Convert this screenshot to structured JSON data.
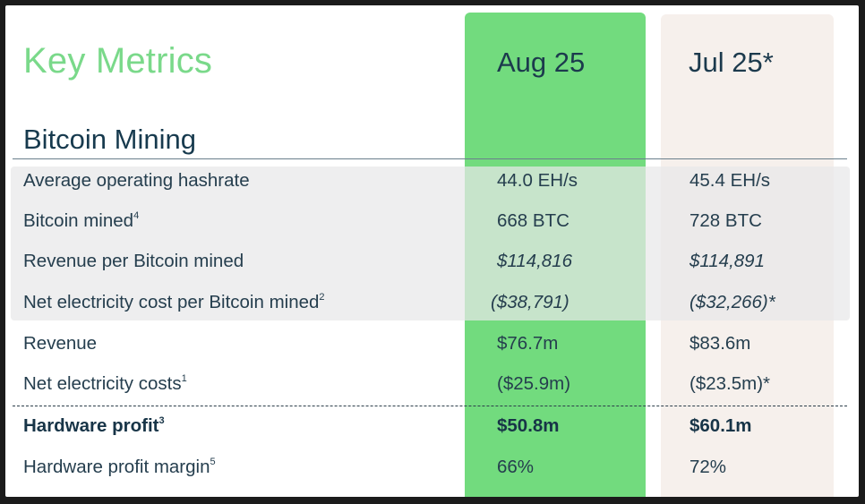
{
  "title": "Key Metrics",
  "columns": {
    "current": "Aug 25",
    "previous": "Jul 25*"
  },
  "section": "Bitcoin Mining",
  "rows": [
    {
      "label": "Average operating hashrate",
      "sup": "",
      "aug": "44.0 EH/s",
      "jul": "45.4 EH/s"
    },
    {
      "label": "Bitcoin mined",
      "sup": "4",
      "aug": "668 BTC",
      "jul": "728 BTC"
    },
    {
      "label": "Revenue per Bitcoin mined",
      "sup": "",
      "aug": "$114,816",
      "jul": "$114,891"
    },
    {
      "label": "Net electricity cost per Bitcoin mined",
      "sup": "2",
      "aug": "($38,791)",
      "jul": "($32,266)*"
    },
    {
      "label": "Revenue",
      "sup": "",
      "aug": "$76.7m",
      "jul": "$83.6m"
    },
    {
      "label": "Net electricity costs",
      "sup": "1",
      "aug": "($25.9m)",
      "jul": "($23.5m)*"
    },
    {
      "label": "Hardware profit",
      "sup": "3",
      "aug": "$50.8m",
      "jul": "$60.1m"
    },
    {
      "label": "Hardware profit margin",
      "sup": "5",
      "aug": "66%",
      "jul": "72%"
    }
  ],
  "colors": {
    "title": "#7ad98a",
    "current_column": "#72db7e",
    "previous_column": "#f6f0ec",
    "text": "#253e4e"
  }
}
